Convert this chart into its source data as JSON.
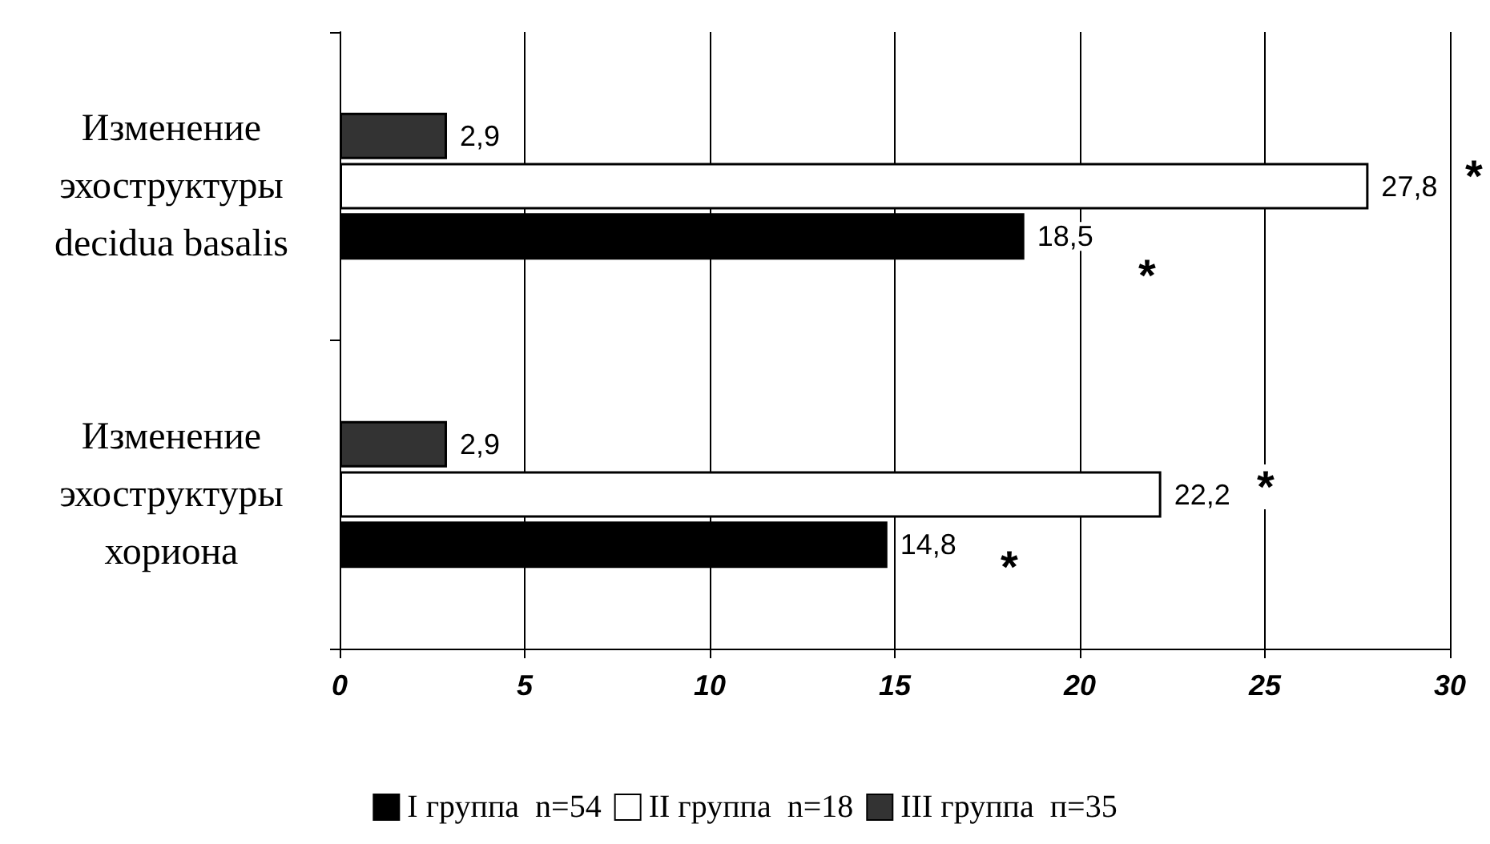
{
  "chart_data": {
    "type": "bar",
    "orientation": "horizontal",
    "categories": [
      "Изменение эхоструктуры decidua basalis",
      "Изменение эхоструктуры хориона"
    ],
    "series": [
      {
        "name": "I группа  n=54",
        "color": "#000000",
        "values": [
          18.5,
          14.8
        ],
        "value_labels": [
          "18,5",
          "14,8"
        ]
      },
      {
        "name": "II группа  n=18",
        "color": "#ffffff",
        "values": [
          27.8,
          22.2
        ],
        "value_labels": [
          "27,8",
          "22,2"
        ]
      },
      {
        "name": "III группа  п=35",
        "color": "#333333",
        "values": [
          2.9,
          2.9
        ],
        "value_labels": [
          "2,9",
          "2,9"
        ]
      }
    ],
    "xlim": [
      0,
      30
    ],
    "xticks": [
      0,
      5,
      10,
      15,
      20,
      25,
      30
    ],
    "grid": "x",
    "legend": "bottom",
    "annotations": [
      "*",
      "*",
      "*",
      "*"
    ]
  }
}
